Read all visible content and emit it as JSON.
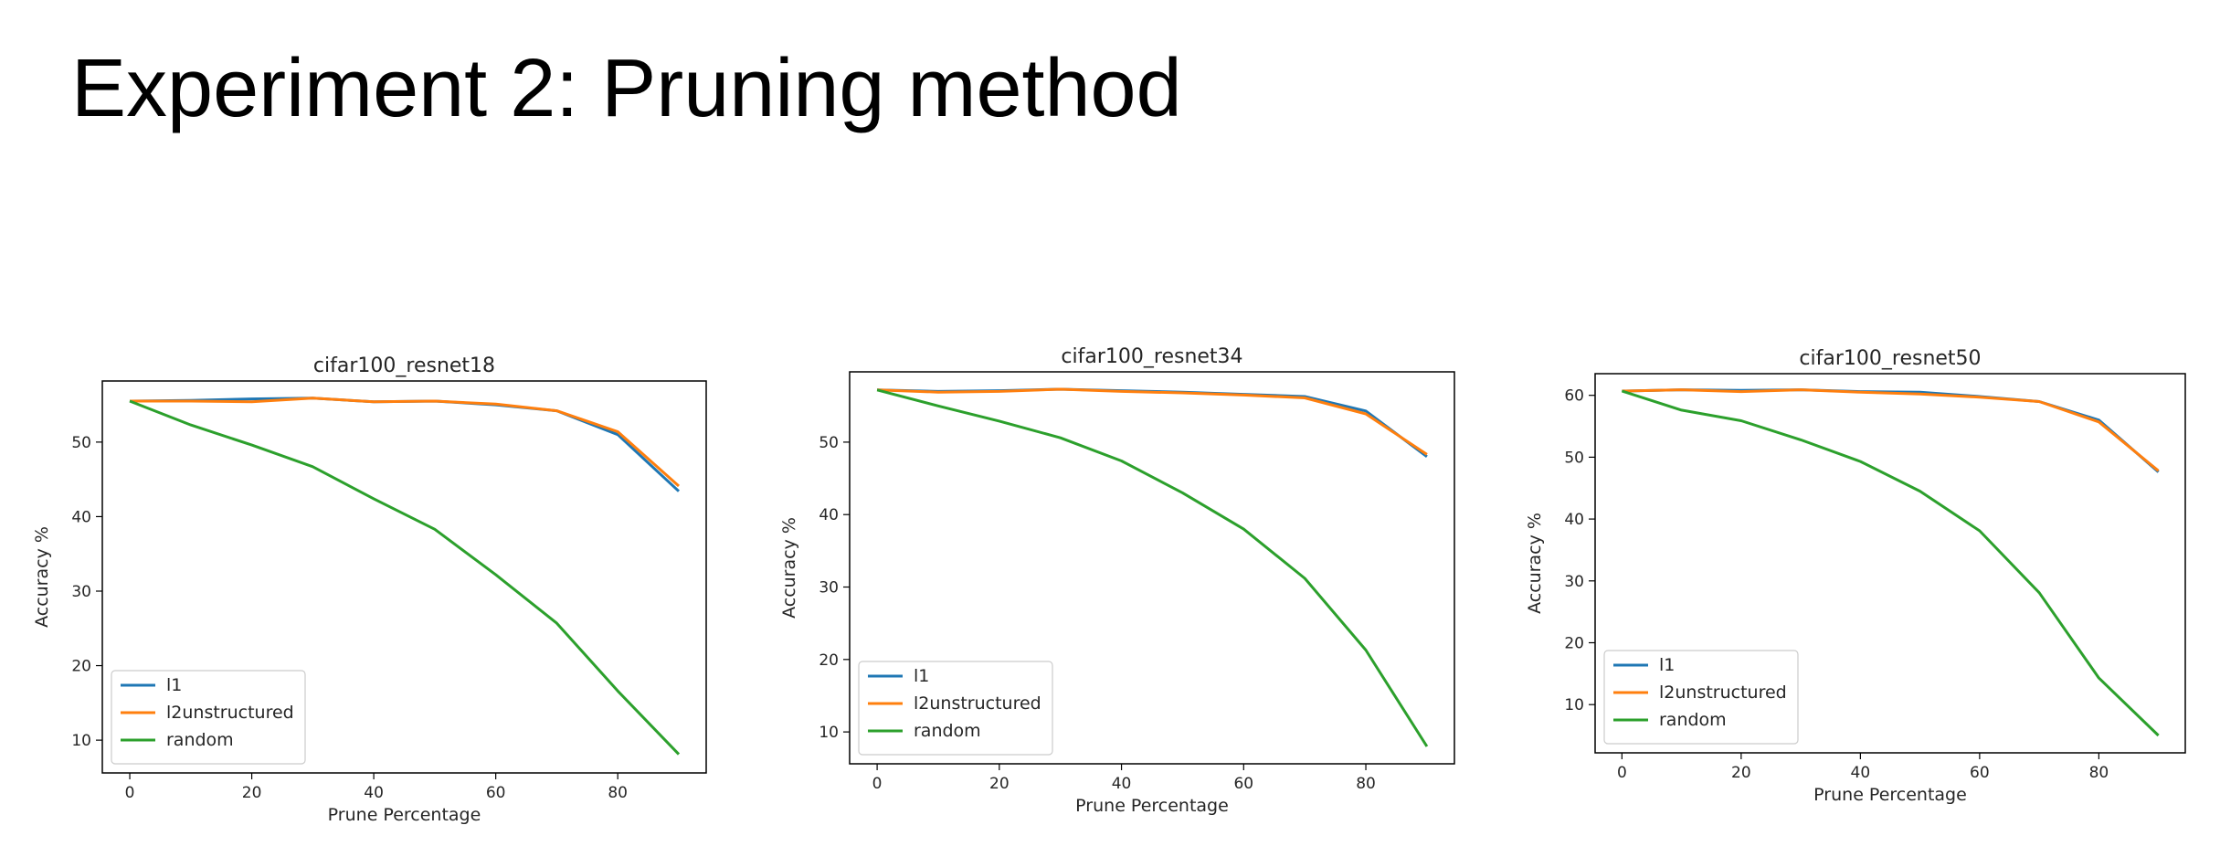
{
  "slide": {
    "title": "Experiment 2: Pruning method"
  },
  "colors": {
    "l1": "#1f77b4",
    "l2unstructured": "#ff7f0e",
    "random": "#2ca02c"
  },
  "chart_data": [
    {
      "type": "line",
      "title": "cifar100_resnet18",
      "xlabel": "Prune Percentage",
      "ylabel": "Accuracy %",
      "x": [
        0,
        10,
        20,
        30,
        40,
        50,
        60,
        70,
        80,
        90
      ],
      "xlim": [
        -4.5,
        94.5
      ],
      "ylim": [
        5.6,
        58.2
      ],
      "xticks": [
        0,
        20,
        40,
        60,
        80
      ],
      "yticks": [
        10,
        20,
        30,
        40,
        50
      ],
      "legend": "lower-left",
      "grid": false,
      "series": [
        {
          "name": "l1",
          "color": "#1f77b4",
          "values": [
            55.5,
            55.6,
            55.8,
            55.9,
            55.4,
            55.5,
            55.0,
            54.2,
            51.0,
            43.4
          ]
        },
        {
          "name": "l2unstructured",
          "color": "#ff7f0e",
          "values": [
            55.5,
            55.5,
            55.4,
            55.9,
            55.4,
            55.5,
            55.1,
            54.2,
            51.4,
            44.1
          ]
        },
        {
          "name": "random",
          "color": "#2ca02c",
          "values": [
            55.5,
            52.3,
            49.6,
            46.7,
            42.4,
            38.3,
            32.2,
            25.7,
            16.6,
            8.1
          ]
        }
      ]
    },
    {
      "type": "line",
      "title": "cifar100_resnet34",
      "xlabel": "Prune Percentage",
      "ylabel": "Accuracy %",
      "x": [
        0,
        10,
        20,
        30,
        40,
        50,
        60,
        70,
        80,
        90
      ],
      "xlim": [
        -4.5,
        94.5
      ],
      "ylim": [
        5.6,
        59.7
      ],
      "xticks": [
        0,
        20,
        40,
        60,
        80
      ],
      "yticks": [
        10,
        20,
        30,
        40,
        50
      ],
      "legend": "lower-left",
      "grid": false,
      "series": [
        {
          "name": "l1",
          "color": "#1f77b4",
          "values": [
            57.2,
            57.0,
            57.1,
            57.3,
            57.1,
            56.9,
            56.6,
            56.3,
            54.3,
            48.0
          ]
        },
        {
          "name": "l2unstructured",
          "color": "#ff7f0e",
          "values": [
            57.2,
            56.9,
            57.0,
            57.3,
            57.0,
            56.8,
            56.5,
            56.1,
            53.9,
            48.3
          ]
        },
        {
          "name": "random",
          "color": "#2ca02c",
          "values": [
            57.2,
            55.0,
            52.9,
            50.6,
            47.4,
            43.0,
            38.0,
            31.2,
            21.3,
            8.0
          ]
        }
      ]
    },
    {
      "type": "line",
      "title": "cifar100_resnet50",
      "xlabel": "Prune Percentage",
      "ylabel": "Accuracy %",
      "x": [
        0,
        10,
        20,
        30,
        40,
        50,
        60,
        70,
        80,
        90
      ],
      "xlim": [
        -4.5,
        94.5
      ],
      "ylim": [
        2.2,
        63.5
      ],
      "xticks": [
        0,
        20,
        40,
        60,
        80
      ],
      "yticks": [
        10,
        20,
        30,
        40,
        50,
        60
      ],
      "legend": "lower-left",
      "grid": false,
      "series": [
        {
          "name": "l1",
          "color": "#1f77b4",
          "values": [
            60.7,
            60.9,
            60.8,
            60.9,
            60.6,
            60.5,
            59.8,
            59.0,
            56.0,
            47.6
          ]
        },
        {
          "name": "l2unstructured",
          "color": "#ff7f0e",
          "values": [
            60.7,
            60.9,
            60.6,
            60.9,
            60.5,
            60.2,
            59.7,
            59.0,
            55.7,
            47.8
          ]
        },
        {
          "name": "random",
          "color": "#2ca02c",
          "values": [
            60.7,
            57.6,
            55.9,
            52.8,
            49.3,
            44.5,
            38.1,
            28.1,
            14.3,
            5.0
          ]
        }
      ]
    }
  ]
}
